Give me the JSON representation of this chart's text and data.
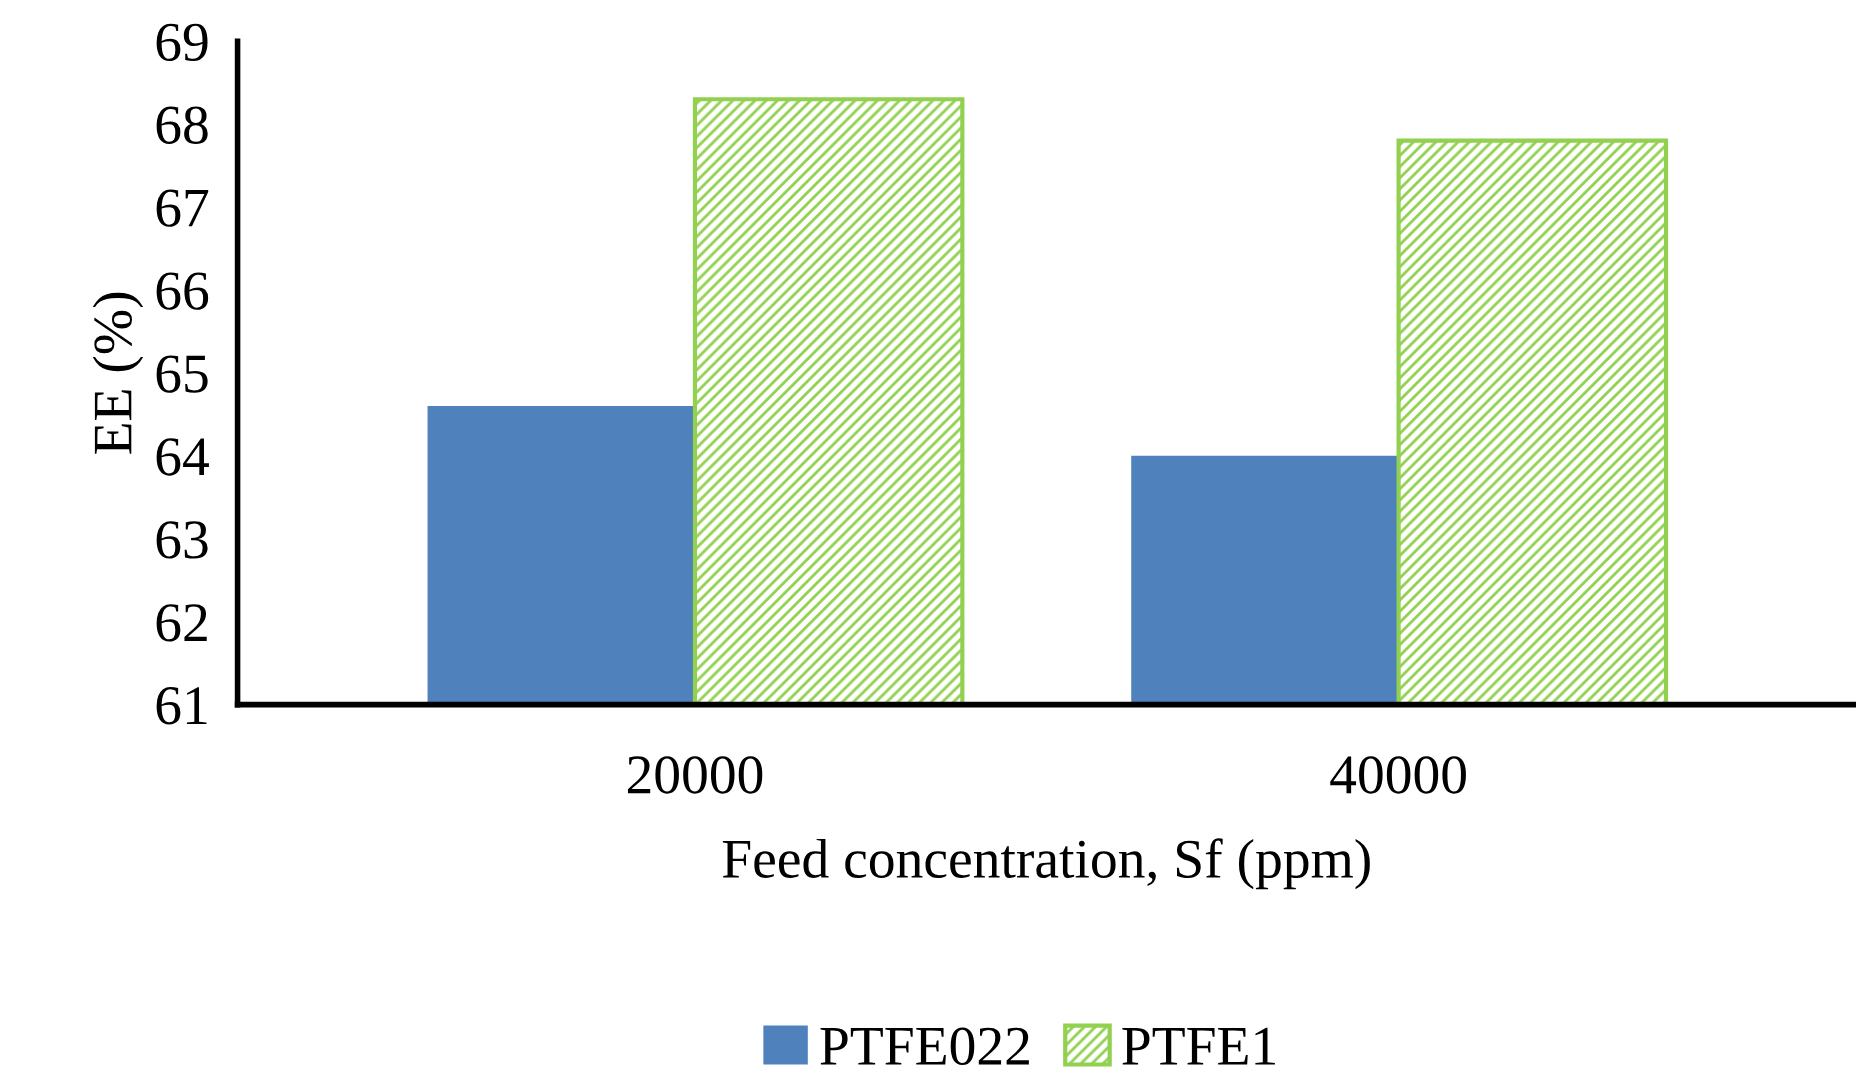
{
  "chart_data": {
    "type": "bar",
    "xlabel": "Feed concentration, Sf (ppm)",
    "ylabel": "EE (%)",
    "categories": [
      "20000",
      "40000"
    ],
    "series": [
      {
        "name": "PTFE022",
        "color": "#4f81bd",
        "values": [
          64.6,
          64.0
        ]
      },
      {
        "name": "PTFE1",
        "color": "#92d050",
        "values": [
          68.3,
          67.8
        ]
      }
    ],
    "ylim": [
      61,
      69
    ],
    "yticks": [
      61,
      62,
      63,
      64,
      65,
      66,
      67,
      68,
      69
    ],
    "grid": false,
    "legend": "bottom"
  }
}
